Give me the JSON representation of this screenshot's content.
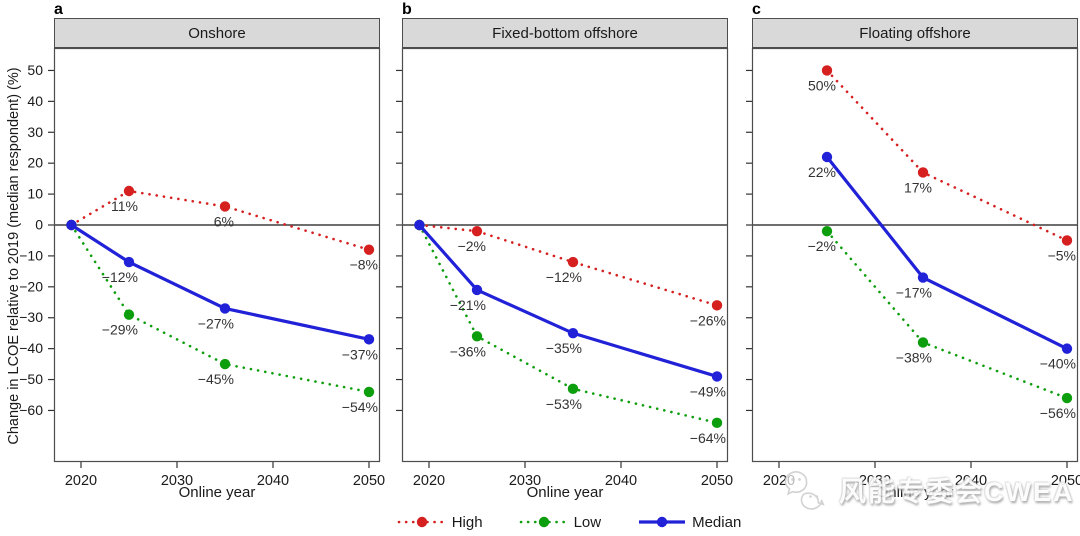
{
  "figure": {
    "watermark_text": "风能专委会CWEA"
  },
  "chart_data": {
    "type": "line",
    "title": "",
    "xlabel": "Online year",
    "ylabel": "Change in LCOE relative to 2019 (median respondent) (%)",
    "x_ticks": [
      2020,
      2030,
      2040,
      2050
    ],
    "y_ticks": [
      50,
      40,
      30,
      20,
      10,
      0,
      -10,
      -20,
      -30,
      -40,
      -50,
      -60
    ],
    "xlim": [
      2017.2,
      2051.3
    ],
    "ylim": [
      -76,
      56
    ],
    "grid": false,
    "zero_line": true,
    "legend_position": "bottom",
    "panels": [
      {
        "letter": "a",
        "title": "Onshore",
        "series": [
          {
            "name": "High",
            "color": "#d62020",
            "line_style": "dotted",
            "x": [
              2019,
              2025,
              2035,
              2050
            ],
            "y": [
              0,
              11,
              6,
              -8
            ],
            "labels": [
              "",
              "11%",
              "6%",
              "−8%"
            ]
          },
          {
            "name": "Low",
            "color": "#0d9e0d",
            "line_style": "dotted",
            "x": [
              2019,
              2025,
              2035,
              2050
            ],
            "y": [
              0,
              -29,
              -45,
              -54
            ],
            "labels": [
              "",
              "−29%",
              "−45%",
              "−54%"
            ]
          },
          {
            "name": "Median",
            "color": "#2121d8",
            "line_style": "solid",
            "x": [
              2019,
              2025,
              2035,
              2050
            ],
            "y": [
              0,
              -12,
              -27,
              -37
            ],
            "labels": [
              "",
              "−12%",
              "−27%",
              "−37%"
            ]
          }
        ]
      },
      {
        "letter": "b",
        "title": "Fixed-bottom offshore",
        "series": [
          {
            "name": "High",
            "color": "#d62020",
            "line_style": "dotted",
            "x": [
              2019,
              2025,
              2035,
              2050
            ],
            "y": [
              0,
              -2,
              -12,
              -26
            ],
            "labels": [
              "",
              "−2%",
              "−12%",
              "−26%"
            ]
          },
          {
            "name": "Low",
            "color": "#0d9e0d",
            "line_style": "dotted",
            "x": [
              2019,
              2025,
              2035,
              2050
            ],
            "y": [
              0,
              -36,
              -53,
              -64
            ],
            "labels": [
              "",
              "−36%",
              "−53%",
              "−64%"
            ]
          },
          {
            "name": "Median",
            "color": "#2121d8",
            "line_style": "solid",
            "x": [
              2019,
              2025,
              2035,
              2050
            ],
            "y": [
              0,
              -21,
              -35,
              -49
            ],
            "labels": [
              "",
              "−21%",
              "−35%",
              "−49%"
            ]
          }
        ]
      },
      {
        "letter": "c",
        "title": "Floating offshore",
        "series": [
          {
            "name": "High",
            "color": "#d62020",
            "line_style": "dotted",
            "x": [
              2025,
              2035,
              2050
            ],
            "y": [
              50,
              17,
              -5
            ],
            "labels": [
              "50%",
              "17%",
              "−5%"
            ]
          },
          {
            "name": "Low",
            "color": "#0d9e0d",
            "line_style": "dotted",
            "x": [
              2025,
              2035,
              2050
            ],
            "y": [
              -2,
              -38,
              -56
            ],
            "labels": [
              "−2%",
              "−38%",
              "−56%"
            ]
          },
          {
            "name": "Median",
            "color": "#2121d8",
            "line_style": "solid",
            "x": [
              2025,
              2035,
              2050
            ],
            "y": [
              22,
              -17,
              -40
            ],
            "labels": [
              "22%",
              "−17%",
              "−40%"
            ]
          }
        ]
      }
    ],
    "legend": [
      {
        "label": "High",
        "color": "#d62020",
        "style": "dotted"
      },
      {
        "label": "Low",
        "color": "#0d9e0d",
        "style": "dotted"
      },
      {
        "label": "Median",
        "color": "#2121d8",
        "style": "solid"
      }
    ]
  }
}
